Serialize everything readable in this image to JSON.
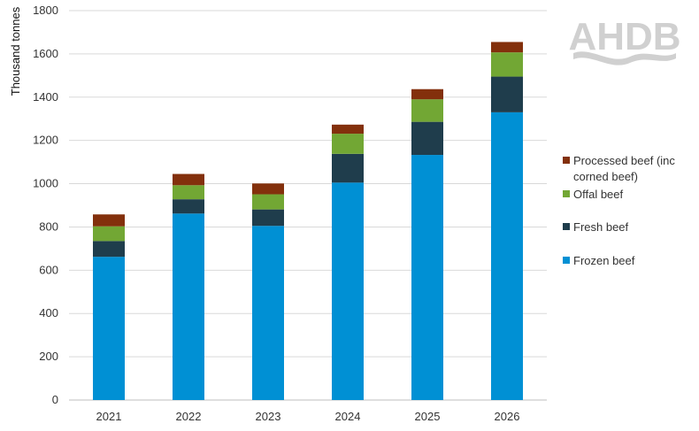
{
  "logo": {
    "text": "AHDB",
    "color": "#d0d0d0"
  },
  "chart_data": {
    "type": "bar",
    "stacked": true,
    "title": "",
    "xlabel": "",
    "ylabel": "Thousand tonnes",
    "categories": [
      "2021",
      "2022",
      "2023",
      "2024",
      "2025",
      "2026"
    ],
    "ylim": [
      0,
      1800
    ],
    "yticks": [
      0,
      200,
      400,
      600,
      800,
      1000,
      1200,
      1400,
      1600,
      1800
    ],
    "grid": true,
    "legend_position": "right",
    "series": [
      {
        "name": "Frozen beef",
        "color": "#0090d4",
        "values": [
          662,
          862,
          805,
          1005,
          1133,
          1330
        ]
      },
      {
        "name": "Fresh beef",
        "color": "#1f3d4c",
        "values": [
          73,
          66,
          76,
          133,
          153,
          165
        ]
      },
      {
        "name": "Offal beef",
        "color": "#72a734",
        "values": [
          68,
          65,
          70,
          93,
          104,
          112
        ]
      },
      {
        "name": "Processed beef (inc corned beef)",
        "color": "#83300c",
        "values": [
          55,
          52,
          50,
          42,
          47,
          48
        ]
      }
    ],
    "legend_entries": [
      {
        "series_index": 3,
        "lines": [
          "Processed beef (inc",
          "corned beef)"
        ]
      },
      {
        "series_index": 2,
        "lines": [
          "Offal beef"
        ]
      },
      {
        "series_index": 1,
        "lines": [
          "Fresh beef"
        ]
      },
      {
        "series_index": 0,
        "lines": [
          "Frozen beef"
        ]
      }
    ]
  }
}
